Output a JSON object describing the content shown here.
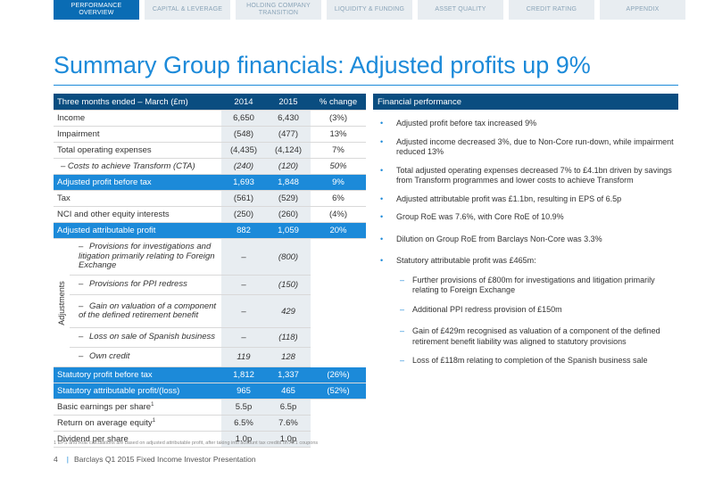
{
  "tabs": [
    {
      "label": "PERFORMANCE OVERVIEW",
      "active": true
    },
    {
      "label": "CAPITAL & LEVERAGE",
      "active": false
    },
    {
      "label": "HOLDING COMPANY TRANSITION",
      "active": false
    },
    {
      "label": "LIQUIDITY & FUNDING",
      "active": false
    },
    {
      "label": "ASSET QUALITY",
      "active": false
    },
    {
      "label": "CREDIT RATING",
      "active": false
    },
    {
      "label": "APPENDIX",
      "active": false
    }
  ],
  "title": "Summary Group financials: Adjusted profits up 9%",
  "table": {
    "header": {
      "label": "Three months ended – March (£m)",
      "c2014": "2014",
      "c2015": "2015",
      "change": "% change"
    },
    "rows_top": [
      {
        "label": "Income",
        "v2014": "6,650",
        "v2015": "6,430",
        "change": "(3%)"
      },
      {
        "label": "Impairment",
        "v2014": "(548)",
        "v2015": "(477)",
        "change": "13%"
      },
      {
        "label": "Total operating expenses",
        "v2014": "(4,435)",
        "v2015": "(4,124)",
        "change": "7%"
      },
      {
        "label": "–  Costs to achieve Transform (CTA)",
        "v2014": "(240)",
        "v2015": "(120)",
        "change": "50%"
      }
    ],
    "adj_pbt": {
      "label": "Adjusted profit before tax",
      "v2014": "1,693",
      "v2015": "1,848",
      "change": "9%"
    },
    "rows_mid": [
      {
        "label": "Tax",
        "v2014": "(561)",
        "v2015": "(529)",
        "change": "6%"
      },
      {
        "label": "NCI and other equity interests",
        "v2014": "(250)",
        "v2015": "(260)",
        "change": "(4%)"
      }
    ],
    "adj_attr": {
      "label": "Adjusted attributable profit",
      "v2014": "882",
      "v2015": "1,059",
      "change": "20%"
    },
    "adjustments_label": "Adjustments",
    "adjustments": [
      {
        "label": "Provisions for investigations and litigation primarily relating to Foreign Exchange",
        "v2014": "–",
        "v2015": "(800)"
      },
      {
        "label": "Provisions for PPI redress",
        "v2014": "–",
        "v2015": "(150)"
      },
      {
        "label": "Gain on valuation of a component of the defined retirement benefit",
        "v2014": "–",
        "v2015": "429"
      },
      {
        "label": "Loss on sale of Spanish business",
        "v2014": "–",
        "v2015": "(118)"
      },
      {
        "label": "Own credit",
        "v2014": "119",
        "v2015": "128"
      }
    ],
    "dash": "–",
    "stat_pbt": {
      "label": "Statutory profit before tax",
      "v2014": "1,812",
      "v2015": "1,337",
      "change": "(26%)"
    },
    "stat_attr": {
      "label": "Statutory attributable profit/(loss)",
      "v2014": "965",
      "v2015": "465",
      "change": "(52%)"
    },
    "rows_bottom": [
      {
        "label": "Basic earnings per share",
        "sup": "1",
        "v2014": "5.5p",
        "v2015": "6.5p"
      },
      {
        "label": "Return on average equity",
        "sup": "1",
        "v2014": "6.5%",
        "v2015": "7.6%"
      },
      {
        "label": "Dividend per share",
        "sup": "",
        "v2014": "1.0p",
        "v2015": "1.0p"
      }
    ]
  },
  "performance": {
    "heading": "Financial performance",
    "bullets": [
      "Adjusted profit before tax increased 9%",
      "Adjusted income decreased 3%, due to Non-Core run-down, while impairment reduced 13%",
      "Total adjusted operating expenses decreased 7% to £4.1bn driven by savings from Transform programmes and lower costs to achieve Transform",
      "Adjusted attributable profit was £1.1bn, resulting in EPS of 6.5p",
      "Group RoE was 7.6%, with Core RoE of 10.9%",
      "Dilution on Group RoE from Barclays Non-Core was 3.3%",
      "Statutory attributable profit was £465m:"
    ],
    "sub_bullets": [
      "Further provisions of £800m for investigations and litigation primarily relating to Foreign Exchange",
      "Additional PPI redress provision of £150m",
      "Gain of £429m recognised as valuation of a component of the defined retirement benefit liability was aligned to statutory provisions",
      "Loss of £118m relating to completion of the Spanish business sale"
    ]
  },
  "footnote": "1 EPS and RoE calculations are based on adjusted attributable profit, after taking into account tax credits on AT1 coupons",
  "footer": {
    "page": "4",
    "text": "Barclays Q1 2015 Fixed Income Investor Presentation"
  },
  "colors": {
    "brand": "#1c8ad9",
    "navy": "#0a4d80",
    "tab_active": "#0a6cb4",
    "tab_bg": "#e8edf1"
  }
}
